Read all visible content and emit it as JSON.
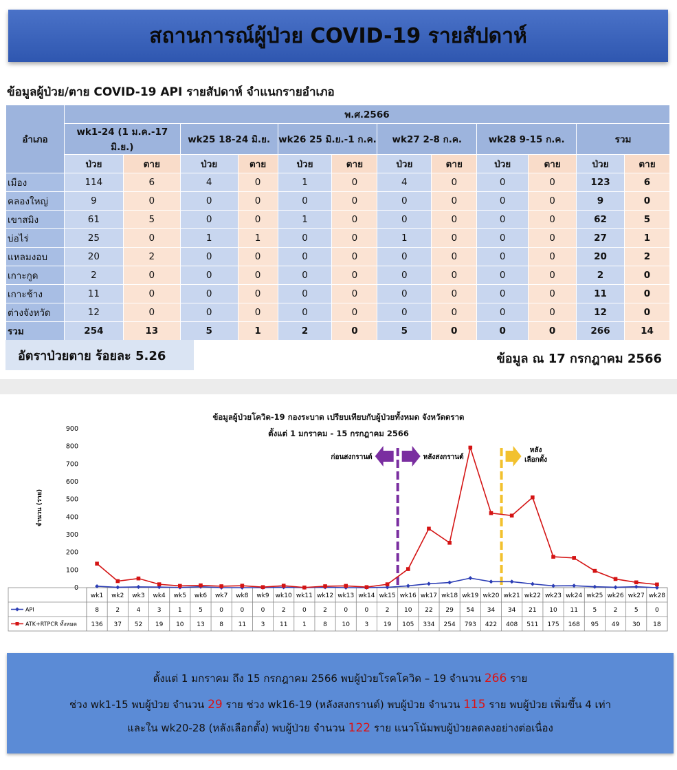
{
  "title": "สถานการณ์ผู้ป่วย COVID-19 รายสัปดาห์",
  "table": {
    "caption": "ข้อมูลผู้ป่วย/ตาย COVID-19 API รายสัปดาห์ จำแนกรายอำเภอ",
    "district_header": "อำเภอ",
    "year_header": "พ.ศ.2566",
    "periods": [
      "wk1-24 (1 ม.ค.-17 มิ.ย.)",
      "wk25 18-24 มิ.ย.",
      "wk26 25 มิ.ย.-1 ก.ค.",
      "wk27 2-8 ก.ค.",
      "wk28 9-15 ก.ค.",
      "รวม"
    ],
    "sick_label": "ป่วย",
    "dead_label": "ตาย",
    "rows": [
      {
        "name": "เมือง",
        "values": [
          "114",
          "6",
          "4",
          "0",
          "1",
          "0",
          "4",
          "0",
          "0",
          "0",
          "123",
          "6"
        ]
      },
      {
        "name": "คลองใหญ่",
        "values": [
          "9",
          "0",
          "0",
          "0",
          "0",
          "0",
          "0",
          "0",
          "0",
          "0",
          "9",
          "0"
        ]
      },
      {
        "name": "เขาสมิง",
        "values": [
          "61",
          "5",
          "0",
          "0",
          "1",
          "0",
          "0",
          "0",
          "0",
          "0",
          "62",
          "5"
        ]
      },
      {
        "name": "บ่อไร่",
        "values": [
          "25",
          "0",
          "1",
          "1",
          "0",
          "0",
          "1",
          "0",
          "0",
          "0",
          "27",
          "1"
        ]
      },
      {
        "name": "แหลมงอบ",
        "values": [
          "20",
          "2",
          "0",
          "0",
          "0",
          "0",
          "0",
          "0",
          "0",
          "0",
          "20",
          "2"
        ]
      },
      {
        "name": "เกาะกูด",
        "values": [
          "2",
          "0",
          "0",
          "0",
          "0",
          "0",
          "0",
          "0",
          "0",
          "0",
          "2",
          "0"
        ]
      },
      {
        "name": "เกาะช้าง",
        "values": [
          "11",
          "0",
          "0",
          "0",
          "0",
          "0",
          "0",
          "0",
          "0",
          "0",
          "11",
          "0"
        ]
      },
      {
        "name": "ต่างจังหวัด",
        "values": [
          "12",
          "0",
          "0",
          "0",
          "0",
          "0",
          "0",
          "0",
          "0",
          "0",
          "12",
          "0"
        ]
      },
      {
        "name": "รวม",
        "values": [
          "254",
          "13",
          "5",
          "1",
          "2",
          "0",
          "5",
          "0",
          "0",
          "0",
          "266",
          "14"
        ]
      }
    ]
  },
  "fatality_rate": "อัตราป่วยตาย ร้อยละ 5.26",
  "as_of": "ข้อมูล ณ 17 กรกฎาคม 2566",
  "colors": {
    "api": "#2b3db5",
    "atk": "#d41414",
    "songkran_line": "#7a2ea0",
    "election_line": "#f2c12e"
  },
  "chart_data": {
    "type": "line",
    "title": "ข้อมูลผู้ป่วยโควิด-19 กองระบาด เปรียบเทียบกับผู้ป่วยทั้งหมด จังหวัดตราด",
    "subtitle": "ตั้งแต่ 1 มกราคม -  15 กรกฎาคม 2566",
    "ylabel": "จำนวน (ราย)",
    "ylim": [
      0,
      900
    ],
    "yticks": [
      0,
      100,
      200,
      300,
      400,
      500,
      600,
      700,
      800,
      900
    ],
    "categories": [
      "wk1",
      "wk2",
      "wk3",
      "wk4",
      "wk5",
      "wk6",
      "wk7",
      "wk8",
      "wk9",
      "wk10",
      "wk11",
      "wk12",
      "wk13",
      "wk14",
      "wk15",
      "wk16",
      "wk17",
      "wk18",
      "wk19",
      "wk20",
      "wk21",
      "wk22",
      "wk23",
      "wk24",
      "wk25",
      "wk26",
      "wk27",
      "wk28"
    ],
    "series": [
      {
        "name": "API",
        "values": [
          8,
          2,
          4,
          3,
          1,
          5,
          0,
          0,
          0,
          2,
          0,
          2,
          0,
          0,
          2,
          10,
          22,
          29,
          54,
          34,
          34,
          21,
          10,
          11,
          5,
          2,
          5,
          0
        ]
      },
      {
        "name": "ATK+RTPCR ทั้งหมด",
        "values": [
          136,
          37,
          52,
          19,
          10,
          13,
          8,
          11,
          3,
          11,
          1,
          8,
          10,
          3,
          19,
          105,
          334,
          254,
          793,
          422,
          408,
          511,
          175,
          168,
          95,
          49,
          30,
          18
        ]
      }
    ],
    "annotations": {
      "before_songkran": "ก่อนสงกรานต์",
      "after_songkran": "หลังสงกรานต์",
      "after_election": "หลัง\nเลือกตั้ง"
    },
    "songkran_between": [
      "wk15",
      "wk16"
    ],
    "election_between": [
      "wk20",
      "wk21"
    ],
    "grid": false,
    "legend": "table-below"
  },
  "summary": {
    "line1_pre": "ตั้งแต่ 1 มกราคม ถึง 15 กรกฎาคม 2566 พบผู้ป่วยโรคโควิด – 19 จำนวน",
    "line1_num": "266",
    "line1_post": "ราย",
    "line2_pre": "ช่วง wk1-15 พบผู้ป่วย จำนวน",
    "line2_num1": "29",
    "line2_mid": "ราย ช่วง wk16-19 (หลังสงกรานต์) พบผู้ป่วย จำนวน",
    "line2_num2": "115",
    "line2_post": "ราย พบผู้ป่วย เพิ่มขึ้น 4 เท่า",
    "line3_pre": "และใน wk20-28 (หลังเลือกตั้ง) พบผู้ป่วย จำนวน",
    "line3_num": "122",
    "line3_post": "ราย แนวโน้มพบผู้ป่วยลดลงอย่างต่อเนื่อง"
  }
}
